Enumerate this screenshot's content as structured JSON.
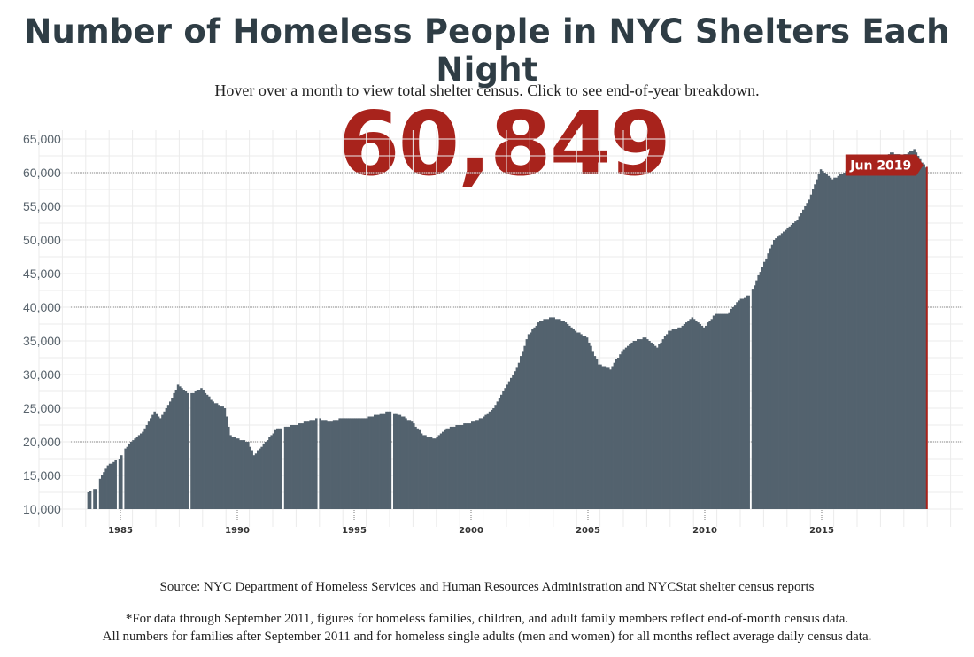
{
  "header": {
    "title": "Number of Homeless People in NYC Shelters Each Night",
    "subtitle": "Hover over a month to view total shelter census. Click to see end-of-year breakdown.",
    "current_value": "60,849",
    "current_label": "Jun 2019"
  },
  "footer": {
    "source": "Source: NYC Department of Homeless Services and Human Resources Administration and NYCStat shelter census reports",
    "footnote_line1": "*For data through September 2011, figures for homeless families, children, and adult family members reflect end-of-month census data.",
    "footnote_line2": "All numbers for families after September 2011 and for homeless single adults (men and women) for all months reflect average daily census data."
  },
  "colors": {
    "bar": "#53626e",
    "highlight": "#a8231c",
    "grid": "#ebebeb",
    "reference_line": "#8a8a8a"
  },
  "chart_data": {
    "type": "bar",
    "title": "",
    "xlabel": "",
    "ylabel": "",
    "ylim": [
      10000,
      65000
    ],
    "yticks": [
      "10,000",
      "15,000",
      "20,000",
      "25,000",
      "30,000",
      "35,000",
      "40,000",
      "45,000",
      "50,000",
      "55,000",
      "60,000",
      "65,000"
    ],
    "xticks": [
      "1985",
      "1990",
      "1995",
      "2000",
      "2005",
      "2010",
      "2015"
    ],
    "reference_lines": [
      20000,
      40000,
      60000
    ],
    "highlight_period": "Jun 2019",
    "highlight_value": 60849,
    "grid": true,
    "frequency": "monthly",
    "anchors": [
      [
        "1983-08",
        12500
      ],
      [
        "1983-12",
        13000
      ],
      [
        "1984-02",
        14500
      ],
      [
        "1984-06",
        16500
      ],
      [
        "1984-12",
        17500
      ],
      [
        "1985-03",
        19000
      ],
      [
        "1985-06",
        20000
      ],
      [
        "1985-12",
        21500
      ],
      [
        "1986-06",
        24500
      ],
      [
        "1986-09",
        23500
      ],
      [
        "1987-03",
        26500
      ],
      [
        "1987-06",
        28500
      ],
      [
        "1987-12",
        27000
      ],
      [
        "1988-06",
        28000
      ],
      [
        "1988-12",
        26000
      ],
      [
        "1989-06",
        25000
      ],
      [
        "1989-09",
        21000
      ],
      [
        "1989-12",
        20500
      ],
      [
        "1990-06",
        20000
      ],
      [
        "1990-09",
        18000
      ],
      [
        "1991-03",
        20000
      ],
      [
        "1991-09",
        22000
      ],
      [
        "1992-06",
        22500
      ],
      [
        "1992-12",
        23000
      ],
      [
        "1993-06",
        23500
      ],
      [
        "1993-12",
        23000
      ],
      [
        "1994-06",
        23500
      ],
      [
        "1994-12",
        23500
      ],
      [
        "1995-06",
        23500
      ],
      [
        "1995-12",
        24000
      ],
      [
        "1996-06",
        24500
      ],
      [
        "1996-12",
        24000
      ],
      [
        "1997-06",
        23000
      ],
      [
        "1997-12",
        21000
      ],
      [
        "1998-06",
        20500
      ],
      [
        "1998-12",
        22000
      ],
      [
        "1999-06",
        22500
      ],
      [
        "1999-12",
        22800
      ],
      [
        "2000-06",
        23500
      ],
      [
        "2000-12",
        25000
      ],
      [
        "2001-06",
        28000
      ],
      [
        "2001-12",
        31000
      ],
      [
        "2002-06",
        36000
      ],
      [
        "2002-12",
        38000
      ],
      [
        "2003-06",
        38500
      ],
      [
        "2003-12",
        38000
      ],
      [
        "2004-06",
        36500
      ],
      [
        "2004-12",
        35500
      ],
      [
        "2005-06",
        31500
      ],
      [
        "2005-12",
        30800
      ],
      [
        "2006-06",
        33500
      ],
      [
        "2006-12",
        35000
      ],
      [
        "2007-06",
        35500
      ],
      [
        "2007-12",
        34000
      ],
      [
        "2008-06",
        36500
      ],
      [
        "2008-12",
        37000
      ],
      [
        "2009-06",
        38500
      ],
      [
        "2009-12",
        37000
      ],
      [
        "2010-06",
        39000
      ],
      [
        "2010-12",
        39000
      ],
      [
        "2011-06",
        41000
      ],
      [
        "2011-12",
        42000
      ],
      [
        "2012-06",
        46000
      ],
      [
        "2012-12",
        50000
      ],
      [
        "2013-06",
        51500
      ],
      [
        "2013-12",
        53000
      ],
      [
        "2014-06",
        56000
      ],
      [
        "2014-12",
        60500
      ],
      [
        "2015-06",
        59000
      ],
      [
        "2015-12",
        60000
      ],
      [
        "2016-06",
        61500
      ],
      [
        "2016-12",
        62500
      ],
      [
        "2017-06",
        61500
      ],
      [
        "2017-12",
        63000
      ],
      [
        "2018-06",
        62500
      ],
      [
        "2018-12",
        63500
      ],
      [
        "2019-03",
        62000
      ],
      [
        "2019-06",
        60849
      ]
    ],
    "gaps": [
      "1983-10",
      "1984-01",
      "1984-11",
      "1985-02",
      "1987-12",
      "1991-12",
      "1993-06",
      "1996-08",
      "2011-12"
    ]
  }
}
